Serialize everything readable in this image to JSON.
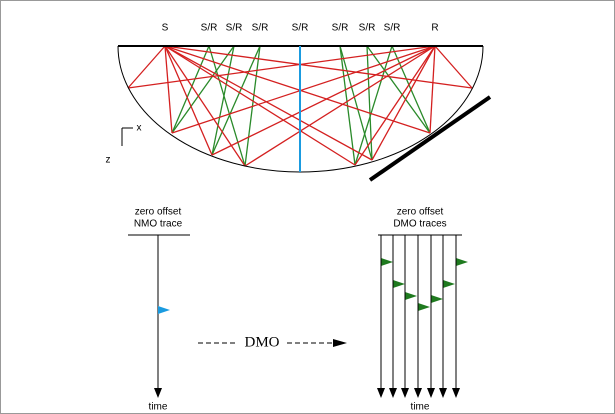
{
  "top_labels": [
    "S",
    "S/R",
    "S/R",
    "S/R",
    "S/R",
    "S/R",
    "S/R",
    "S/R",
    "R"
  ],
  "axis_x": "x",
  "axis_z": "z",
  "left_panel": {
    "title_lines": [
      "zero offset",
      "NMO trace"
    ],
    "axis": "time"
  },
  "right_panel": {
    "title_lines": [
      "zero offset",
      "DMO traces"
    ],
    "axis": "time"
  },
  "operator": "DMO"
}
